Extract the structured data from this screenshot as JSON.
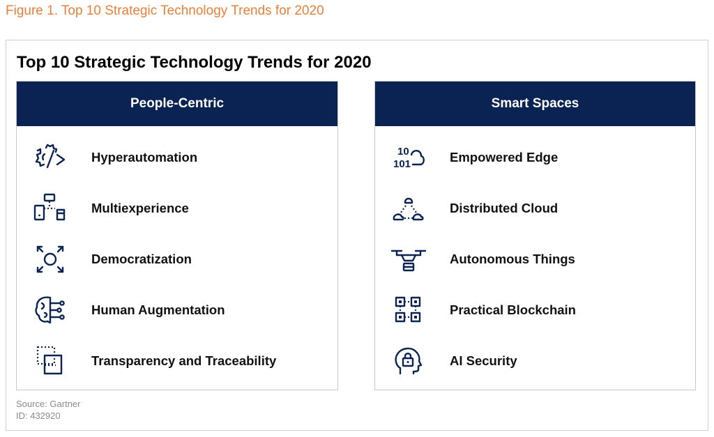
{
  "caption": "Figure 1. Top 10 Strategic Technology Trends for 2020",
  "title": "Top 10 Strategic Technology Trends for 2020",
  "colors": {
    "caption": "#e8803a",
    "header": "#0a2352",
    "text": "#111111"
  },
  "left_panel": {
    "header": "People-Centric",
    "items": [
      {
        "label": "Hyperautomation",
        "icon": "gear-code-icon"
      },
      {
        "label": "Multiexperience",
        "icon": "devices-icon"
      },
      {
        "label": "Democratization",
        "icon": "expand-circle-icon"
      },
      {
        "label": "Human Augmentation",
        "icon": "brain-circuit-icon"
      },
      {
        "label": "Transparency and Traceability",
        "icon": "dotted-squares-icon"
      }
    ]
  },
  "right_panel": {
    "header": "Smart Spaces",
    "items": [
      {
        "label": "Empowered Edge",
        "icon": "binary-cloud-icon"
      },
      {
        "label": "Distributed Cloud",
        "icon": "cloud-network-icon"
      },
      {
        "label": "Autonomous Things",
        "icon": "drone-icon"
      },
      {
        "label": "Practical Blockchain",
        "icon": "linked-blocks-icon"
      },
      {
        "label": "AI Security",
        "icon": "head-lock-icon"
      }
    ],
    "edge_icon_digits": {
      "top": "10",
      "bottom": "101"
    }
  },
  "source": "Source: Gartner",
  "id": "ID: 432920"
}
